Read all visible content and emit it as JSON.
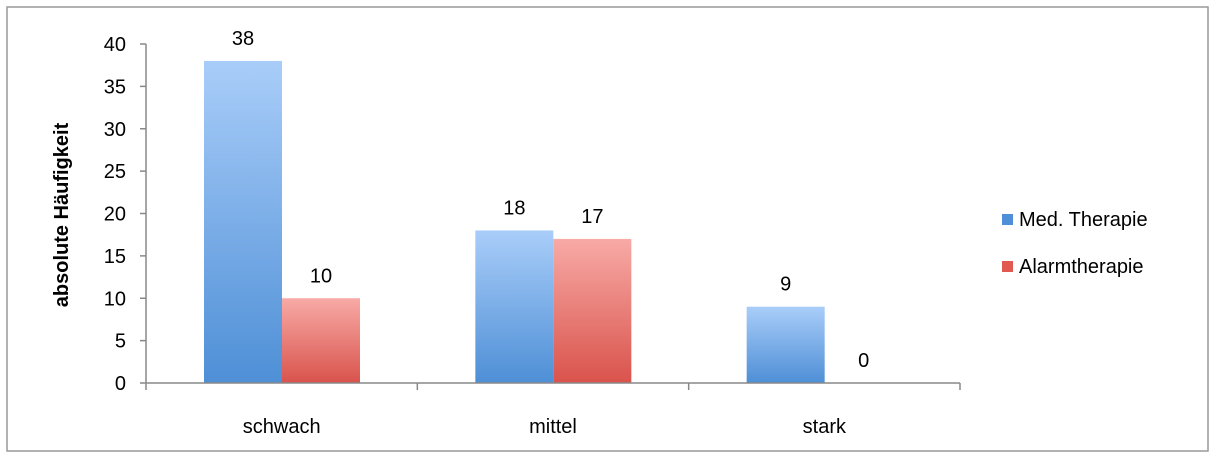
{
  "chart_data": {
    "type": "bar",
    "title": "",
    "xlabel": "",
    "ylabel": "absolute Häufigkeit",
    "categories": [
      "schwach",
      "mittel",
      "stark"
    ],
    "series": [
      {
        "name": "Med. Therapie",
        "values": [
          38,
          18,
          9
        ],
        "color_top": "#a9cdf9",
        "color_bottom": "#4e8fd6",
        "legend_color": "#4f8fd8"
      },
      {
        "name": "Alarmtherapie",
        "values": [
          10,
          17,
          0
        ],
        "color_top": "#f8aaa6",
        "color_bottom": "#d9534c",
        "legend_color": "#e05a52"
      }
    ],
    "data_labels": [
      [
        "38",
        "18",
        "9"
      ],
      [
        "10",
        "17",
        "0"
      ]
    ],
    "yticks": [
      "0",
      "5",
      "10",
      "15",
      "20",
      "25",
      "30",
      "35",
      "40"
    ],
    "ylim": [
      0,
      40
    ],
    "grid": false,
    "legend_position": "right"
  },
  "colors": {
    "axis": "#888888",
    "border": "#999999",
    "text": "#000000",
    "background": "#ffffff"
  }
}
